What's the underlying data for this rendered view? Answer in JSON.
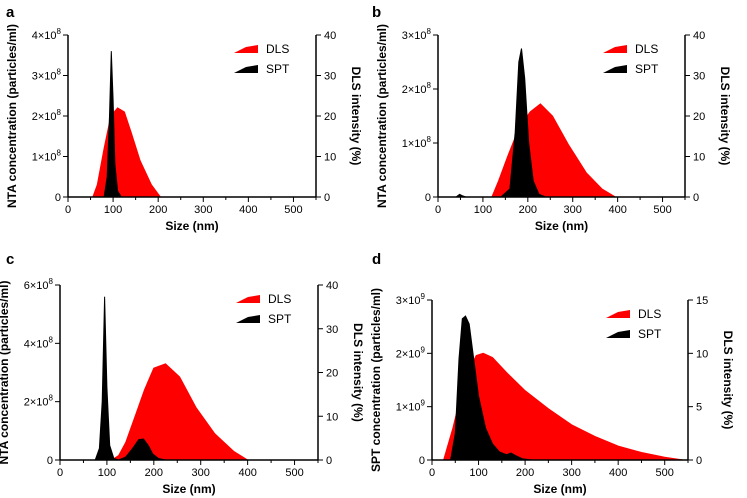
{
  "colors": {
    "dls": "#ff0000",
    "spt": "#000000"
  },
  "chart_data": [
    {
      "panel": "a",
      "type": "area",
      "xlabel": "Size (nm)",
      "ylabel": "NTA concentration (particles/ml)",
      "y2label": "DLS intensity (%)",
      "xlim": [
        0,
        550
      ],
      "xticks": [
        0,
        100,
        200,
        300,
        400,
        500
      ],
      "ylim": [
        0,
        4
      ],
      "yticks": [
        {
          "v": 0,
          "m": "0",
          "e": ""
        },
        {
          "v": 1,
          "m": "1×10",
          "e": "8"
        },
        {
          "v": 2,
          "m": "2×10",
          "e": "8"
        },
        {
          "v": 3,
          "m": "3×10",
          "e": "8"
        },
        {
          "v": 4,
          "m": "4×10",
          "e": "8"
        }
      ],
      "y2lim": [
        0,
        40
      ],
      "y2ticks": [
        0,
        10,
        20,
        30,
        40
      ],
      "legend": [
        "DLS",
        "SPT"
      ],
      "dls": {
        "x": [
          55,
          65,
          80,
          95,
          110,
          125,
          140,
          160,
          185,
          205
        ],
        "y": [
          0,
          3,
          12,
          20,
          22,
          21,
          16,
          9,
          3,
          0
        ]
      },
      "spt": {
        "x": [
          80,
          87,
          92,
          96,
          100,
          104,
          110,
          118
        ],
        "y": [
          0,
          0.5,
          2.0,
          3.6,
          2.4,
          0.8,
          0.15,
          0
        ]
      }
    },
    {
      "panel": "b",
      "type": "area",
      "xlabel": "Size (nm)",
      "ylabel": "NTA concentration (particles/ml)",
      "y2label": "DLS intensity (%)",
      "xlim": [
        0,
        550
      ],
      "xticks": [
        0,
        100,
        200,
        300,
        400,
        500
      ],
      "ylim": [
        0,
        3
      ],
      "yticks": [
        {
          "v": 0,
          "m": "0",
          "e": ""
        },
        {
          "v": 1,
          "m": "1×10",
          "e": "8"
        },
        {
          "v": 2,
          "m": "2×10",
          "e": "8"
        },
        {
          "v": 3,
          "m": "3×10",
          "e": "8"
        }
      ],
      "y2lim": [
        0,
        40
      ],
      "y2ticks": [
        0,
        10,
        20,
        30,
        40
      ],
      "legend": [
        "DLS",
        "SPT"
      ],
      "dls": {
        "x": [
          120,
          135,
          155,
          180,
          205,
          228,
          255,
          290,
          330,
          365,
          395
        ],
        "y": [
          0,
          4,
          10,
          17,
          21,
          23,
          20,
          13,
          6,
          2,
          0
        ]
      },
      "spt": {
        "x": [
          40,
          48,
          55,
          62,
          140,
          160,
          172,
          180,
          186,
          193,
          202,
          212,
          225,
          240
        ],
        "y": [
          0,
          0.05,
          0.02,
          0,
          0,
          0.15,
          1.2,
          2.5,
          2.75,
          2.2,
          1.0,
          0.3,
          0.05,
          0
        ]
      }
    },
    {
      "panel": "c",
      "type": "area",
      "xlabel": "Size (nm)",
      "ylabel": "NTA concentration (particles/ml)",
      "y2label": "DLS intensity (%)",
      "xlim": [
        0,
        550
      ],
      "xticks": [
        0,
        100,
        200,
        300,
        400,
        500
      ],
      "ylim": [
        0,
        6
      ],
      "yticks": [
        {
          "v": 0,
          "m": "0",
          "e": ""
        },
        {
          "v": 2,
          "m": "2×10",
          "e": "8"
        },
        {
          "v": 4,
          "m": "4×10",
          "e": "8"
        },
        {
          "v": 6,
          "m": "6×10",
          "e": "8"
        }
      ],
      "y2lim": [
        0,
        40
      ],
      "y2ticks": [
        0,
        10,
        20,
        30,
        40
      ],
      "legend": [
        "DLS",
        "SPT"
      ],
      "dls": {
        "x": [
          110,
          125,
          140,
          160,
          180,
          200,
          225,
          255,
          290,
          330,
          370,
          400
        ],
        "y": [
          0,
          1,
          4,
          10,
          16,
          21,
          22,
          19,
          12,
          6,
          2,
          0
        ]
      },
      "spt": {
        "x": [
          75,
          84,
          90,
          95,
          100,
          106,
          115,
          125,
          140,
          155,
          168,
          178,
          188,
          198,
          210,
          225
        ],
        "y": [
          0,
          0.4,
          2.0,
          5.6,
          2.5,
          0.5,
          0.05,
          0,
          0.1,
          0.4,
          0.7,
          0.72,
          0.5,
          0.2,
          0.05,
          0
        ]
      }
    },
    {
      "panel": "d",
      "type": "area",
      "xlabel": "Size (nm)",
      "ylabel": "SPT concentration (particles/ml)",
      "y2label": "DLS intensity (%)",
      "xlim": [
        0,
        550
      ],
      "xticks": [
        0,
        100,
        200,
        300,
        400,
        500
      ],
      "ylim": [
        0,
        3
      ],
      "yticks": [
        {
          "v": 0,
          "m": "0",
          "e": ""
        },
        {
          "v": 1,
          "m": "1×10",
          "e": "9"
        },
        {
          "v": 2,
          "m": "2×10",
          "e": "9"
        },
        {
          "v": 3,
          "m": "3×10",
          "e": "9"
        }
      ],
      "y2lim": [
        0,
        15
      ],
      "y2ticks": [
        0,
        5,
        10,
        15
      ],
      "legend": [
        "DLS",
        "SPT"
      ],
      "dls": {
        "x": [
          25,
          45,
          70,
          95,
          110,
          130,
          160,
          200,
          250,
          300,
          350,
          400,
          450,
          500,
          540
        ],
        "y": [
          0,
          3,
          7.5,
          9.8,
          10,
          9.6,
          8.2,
          6.5,
          4.8,
          3.3,
          2.2,
          1.3,
          0.7,
          0.25,
          0
        ]
      },
      "spt": {
        "x": [
          40,
          50,
          58,
          65,
          72,
          80,
          88,
          100,
          115,
          130,
          145,
          160,
          170,
          180,
          195,
          215
        ],
        "y": [
          0,
          0.5,
          1.9,
          2.65,
          2.7,
          2.55,
          2.0,
          1.2,
          0.6,
          0.3,
          0.15,
          0.1,
          0.13,
          0.08,
          0.02,
          0
        ]
      }
    }
  ]
}
